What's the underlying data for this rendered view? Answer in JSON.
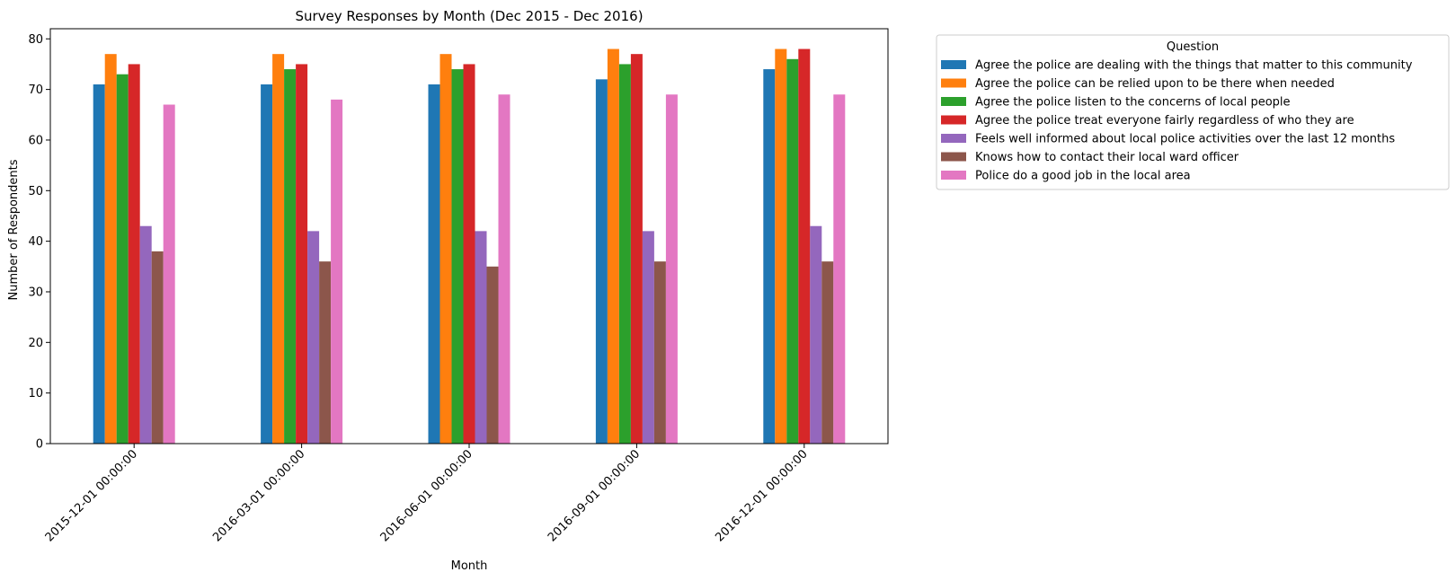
{
  "chart_data": {
    "type": "bar",
    "title": "Survey Responses by Month (Dec 2015 - Dec 2016)",
    "xlabel": "Month",
    "ylabel": "Number of Respondents",
    "categories": [
      "2015-12-01 00:00:00",
      "2016-03-01 00:00:00",
      "2016-06-01 00:00:00",
      "2016-09-01 00:00:00",
      "2016-12-01 00:00:00"
    ],
    "ylim": [
      0,
      82
    ],
    "yticks": [
      0,
      10,
      20,
      30,
      40,
      50,
      60,
      70,
      80
    ],
    "grid": false,
    "legend": {
      "title": "Question",
      "placement": "outside-top-right"
    },
    "series": [
      {
        "name": "Agree the police are dealing with the things that matter to this community",
        "color": "#1f77b4",
        "values": [
          71,
          71,
          71,
          72,
          74
        ]
      },
      {
        "name": "Agree the police can be relied upon to be there when needed",
        "color": "#ff7f0e",
        "values": [
          77,
          77,
          77,
          78,
          78
        ]
      },
      {
        "name": "Agree the police listen to the concerns of local people",
        "color": "#2ca02c",
        "values": [
          73,
          74,
          74,
          75,
          76
        ]
      },
      {
        "name": "Agree the police treat everyone fairly regardless of who they are",
        "color": "#d62728",
        "values": [
          75,
          75,
          75,
          77,
          78
        ]
      },
      {
        "name": "Feels well informed about local police activities over the last 12 months",
        "color": "#9467bd",
        "values": [
          43,
          42,
          42,
          42,
          43
        ]
      },
      {
        "name": "Knows how to contact their local ward officer",
        "color": "#8c564b",
        "values": [
          38,
          36,
          35,
          36,
          36
        ]
      },
      {
        "name": "Police do a good job in the local area",
        "color": "#e377c2",
        "values": [
          67,
          68,
          69,
          69,
          69
        ]
      }
    ]
  }
}
